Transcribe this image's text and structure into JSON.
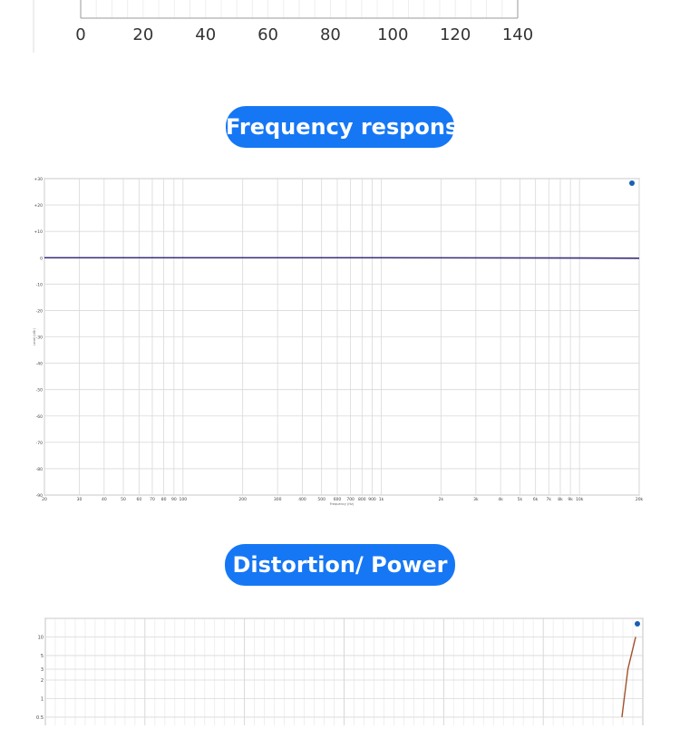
{
  "sections": {
    "frequency_title": "Frequency response",
    "distortion_title": "Distortion/ Power"
  },
  "colors": {
    "pill": "#1677f5",
    "fr_trace": "#3a2f7a",
    "thd_trace": "#a0522d",
    "grid": "#d9d9d9",
    "frame": "#9a9a9a",
    "ap_logo": "#1a5fb4"
  },
  "icons": {
    "ap": "ap-logo-icon"
  },
  "chart_data": [
    {
      "type": "line",
      "title": "",
      "xlabel": "",
      "ylabel": "",
      "x_ticks": [
        "0",
        "20",
        "40",
        "60",
        "80",
        "100",
        "120",
        "140"
      ],
      "xlim": [
        0,
        140
      ],
      "series": [],
      "grid": true,
      "legend": "none"
    },
    {
      "type": "line",
      "title": "",
      "xlabel": "Frequency (Hz)",
      "ylabel": "Level (dBr)",
      "x_scale": "log",
      "xlim": [
        20,
        20000
      ],
      "ylim": [
        -90,
        30
      ],
      "x_tick_labels": [
        "20",
        "30",
        "40",
        "50",
        "60",
        "70",
        "80",
        "90",
        "100",
        "200",
        "300",
        "400",
        "500",
        "600",
        "700",
        "800",
        "900",
        "1k",
        "2k",
        "3k",
        "4k",
        "5k",
        "6k",
        "7k",
        "8k",
        "9k",
        "10k",
        "20k"
      ],
      "x_tick_values": [
        20,
        30,
        40,
        50,
        60,
        70,
        80,
        90,
        100,
        200,
        300,
        400,
        500,
        600,
        700,
        800,
        900,
        1000,
        2000,
        3000,
        4000,
        5000,
        6000,
        7000,
        8000,
        9000,
        10000,
        20000
      ],
      "y_tick_labels": [
        "+30",
        "+20",
        "+10",
        "0",
        "-10",
        "-20",
        "-30",
        "-40",
        "-50",
        "-60",
        "-70",
        "-80",
        "-90"
      ],
      "y_tick_values": [
        30,
        20,
        10,
        0,
        -10,
        -20,
        -30,
        -40,
        -50,
        -60,
        -70,
        -80,
        -90
      ],
      "series": [
        {
          "x": [
            20,
            100,
            1000,
            10000,
            20000
          ],
          "y": [
            0,
            0,
            0,
            -0.1,
            -0.2
          ]
        }
      ],
      "grid": true,
      "legend": "none"
    },
    {
      "type": "line",
      "title": "",
      "y_scale": "log",
      "y_tick_labels": [
        "10",
        "5",
        "3",
        "2",
        "1",
        "0.5"
      ],
      "y_tick_values": [
        10,
        5,
        3,
        2,
        1,
        0.5
      ],
      "series": [
        {
          "x_fraction": [
            0.965,
            0.975,
            0.988
          ],
          "y": [
            0.5,
            3,
            10
          ]
        }
      ],
      "grid": true,
      "legend": "none"
    }
  ]
}
